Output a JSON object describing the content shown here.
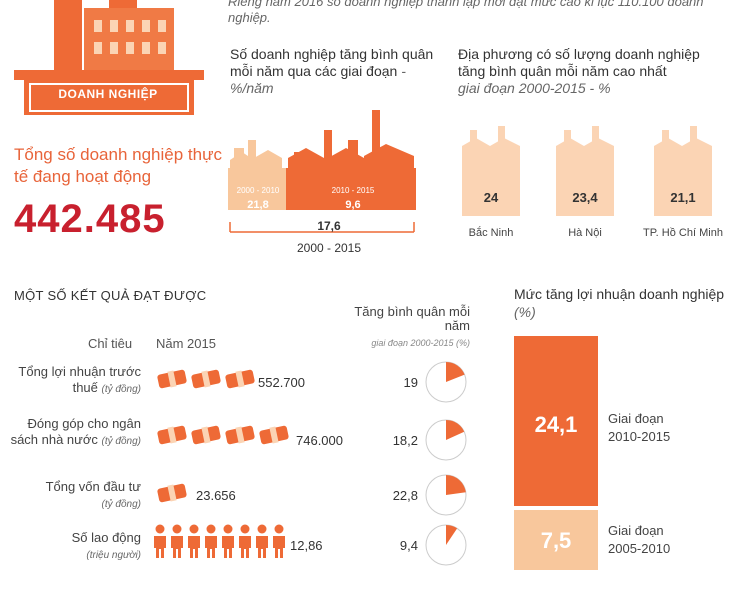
{
  "header": {
    "note": "Riêng năm 2016 số doanh nghiệp thành lập mới đạt mức cao kỉ lục 110.100 doanh nghiệp."
  },
  "logo": {
    "label": "DOANH NGHIỆP"
  },
  "total": {
    "label": "Tổng số doanh nghiệp thực tế đang hoạt động",
    "value": "442.485"
  },
  "growth_by_period": {
    "title": "Số doanh nghiệp tăng bình quân mỗi năm qua các giai đoạn",
    "unit": " - %/năm",
    "periods": [
      {
        "range": "2000 - 2010",
        "value": "21,8"
      },
      {
        "range": "2010 - 2015",
        "value": "9,6"
      }
    ],
    "overall": {
      "value": "17,6",
      "range": "2000 - 2015"
    }
  },
  "top_localities": {
    "title": "Địa phương có số lượng doanh nghiệp tăng bình quân mỗi năm cao nhất",
    "subtitle": "giai đoạn 2000-2015 - %",
    "items": [
      {
        "name": "Bắc Ninh",
        "value": "24"
      },
      {
        "name": "Hà Nội",
        "value": "23,4"
      },
      {
        "name": "TP. Hồ Chí Minh",
        "value": "21,1"
      }
    ]
  },
  "results": {
    "title": "MỘT SỐ KẾT QUẢ ĐẠT ĐƯỢC",
    "col_indicator": "Chỉ tiêu",
    "col_year": "Năm 2015",
    "col_growth": "Tăng bình quân mỗi năm",
    "col_growth_sub": "giai đoạn 2000-2015 (%)",
    "rows": [
      {
        "label": "Tổng lợi nhuận trước thuế",
        "unit": "(tỷ đồng)",
        "value": "552.700",
        "growth": "19",
        "icon": "money-bundle-icon",
        "icon_count": 3,
        "growth_pct": 19
      },
      {
        "label": "Đóng góp cho ngân sách nhà nước",
        "unit": "(tỷ đồng)",
        "value": "746.000",
        "growth": "18,2",
        "icon": "money-bundle-icon",
        "icon_count": 4,
        "growth_pct": 18.2
      },
      {
        "label": "Tổng vốn đầu tư",
        "unit": "(tỷ đồng)",
        "value": "23.656",
        "growth": "22,8",
        "icon": "money-bundle-icon",
        "icon_count": 1,
        "growth_pct": 22.8
      },
      {
        "label": "Số lao động",
        "unit": "(triệu người)",
        "value": "12,86",
        "growth": "9,4",
        "icon": "person-icon",
        "icon_count": 8,
        "growth_pct": 9.4
      }
    ]
  },
  "profit": {
    "title": "Mức tăng lợi nhuận doanh nghiệp",
    "unit": "(%)",
    "periods": [
      {
        "label": "Giai đoạn 2010-2015",
        "value": "24,1"
      },
      {
        "label": "Giai đoạn 2005-2010",
        "value": "7,5"
      }
    ]
  },
  "colors": {
    "accent": "#ee6a36",
    "light": "#f8c79c",
    "dark_red": "#c8202e",
    "pale": "#fbd4b4"
  }
}
